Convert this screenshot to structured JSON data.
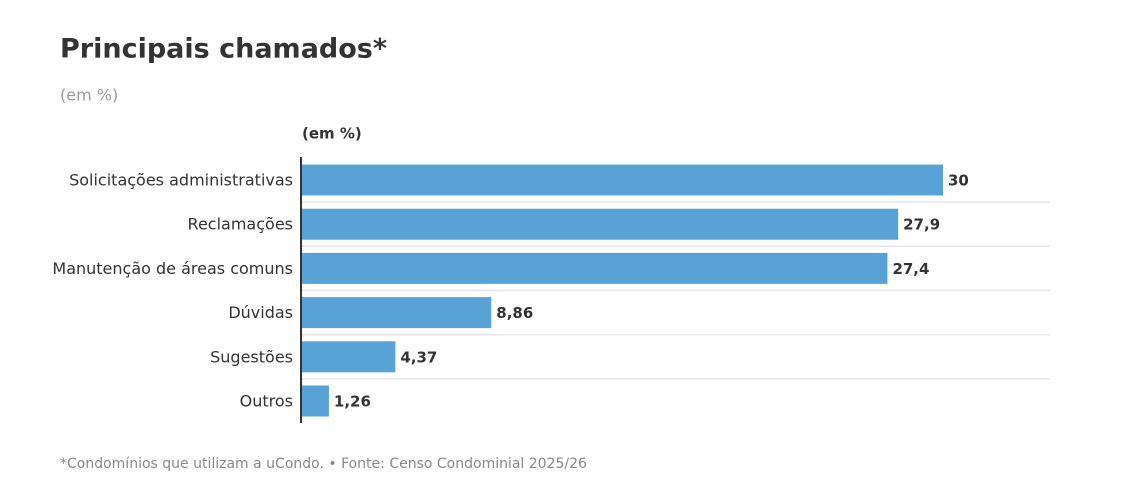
{
  "chart_data": {
    "type": "bar",
    "orientation": "horizontal",
    "title": "Principais chamados*",
    "subtitle": "(em %)",
    "axis_label": "(em %)",
    "footnote": "*Condomínios que utilizam a uCondo. • Fonte: Censo Condominial 2025/26",
    "categories": [
      "Solicitações administrativas",
      "Reclamações",
      "Manutenção de áreas comuns",
      "Dúvidas",
      "Sugestões",
      "Outros"
    ],
    "values": [
      30,
      27.9,
      27.4,
      8.86,
      4.37,
      1.26
    ],
    "value_labels": [
      "30",
      "27,9",
      "27,4",
      "8,86",
      "4,37",
      "1,26"
    ],
    "color": "#59a2d6"
  }
}
